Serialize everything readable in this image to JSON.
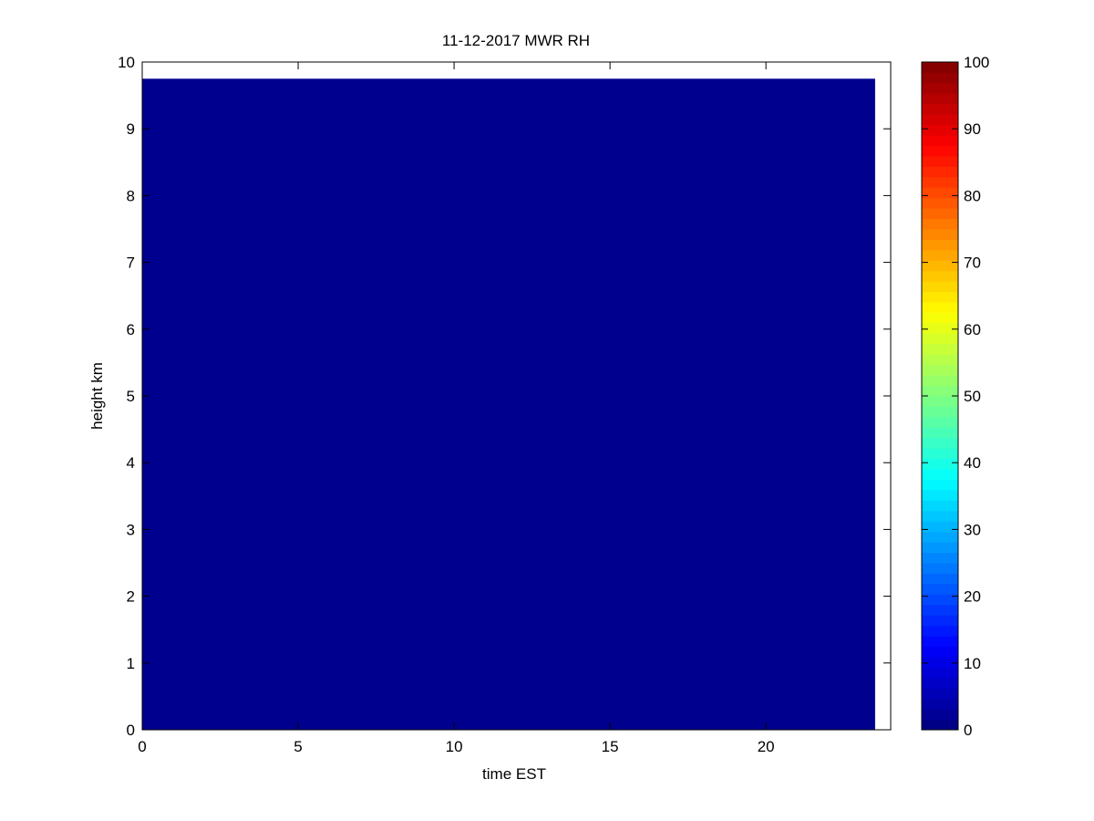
{
  "chart_data": {
    "type": "heatmap",
    "title": "11-12-2017 MWR RH",
    "xlabel": "time EST",
    "ylabel": "height km",
    "xlim": [
      0,
      24
    ],
    "ylim": [
      0,
      10
    ],
    "xticks": [
      0,
      5,
      10,
      15,
      20
    ],
    "yticks": [
      0,
      1,
      2,
      3,
      4,
      5,
      6,
      7,
      8,
      9,
      10
    ],
    "data_extent": {
      "x": [
        0,
        23.5
      ],
      "y": [
        0,
        9.75
      ]
    },
    "value": 0,
    "colormap": "jet",
    "colorbar": {
      "range": [
        0,
        100
      ],
      "ticks": [
        0,
        10,
        20,
        30,
        40,
        50,
        60,
        70,
        80,
        90,
        100
      ],
      "position": "right"
    },
    "grid": false,
    "fill_color": "#00008F"
  }
}
